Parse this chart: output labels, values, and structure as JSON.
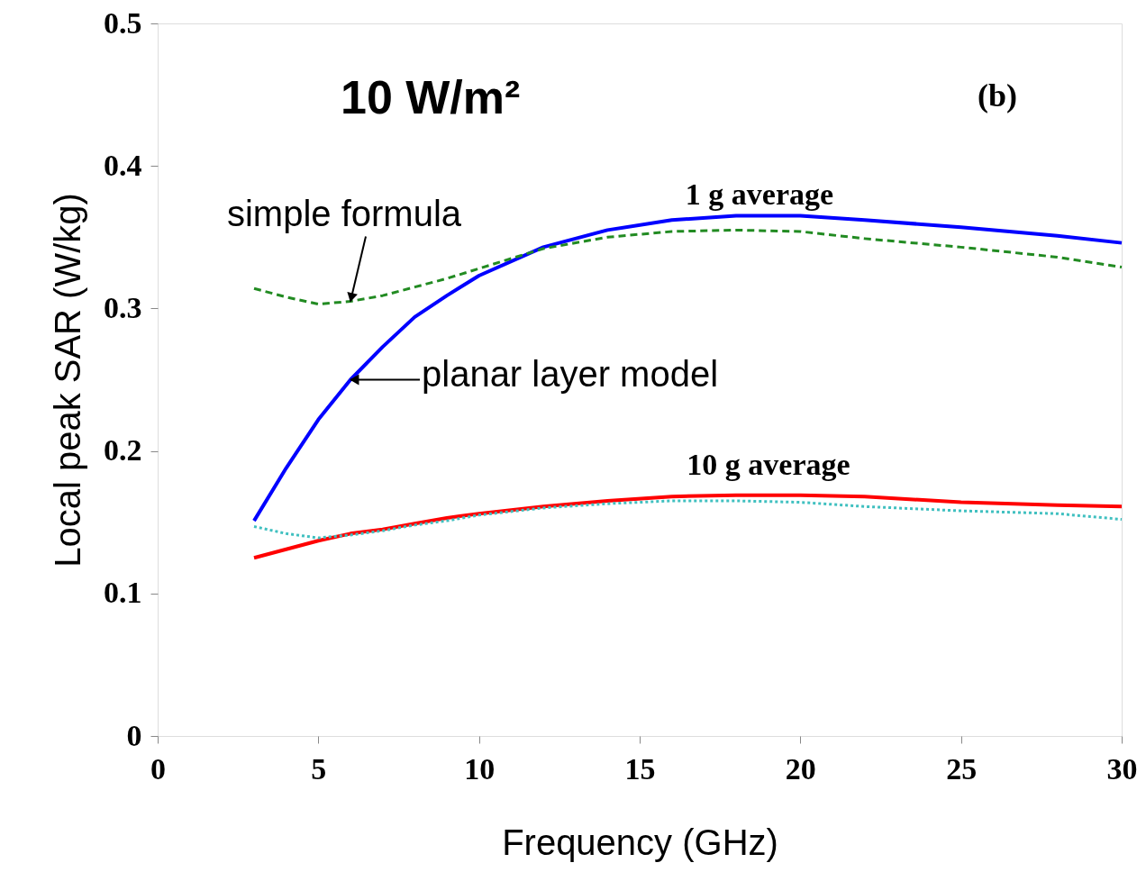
{
  "chart_data": {
    "type": "line",
    "xlabel": "Frequency (GHz)",
    "ylabel": "Local peak SAR (W/kg)",
    "x": [
      3,
      4,
      5,
      6,
      7,
      8,
      9,
      10,
      12,
      14,
      16,
      18,
      20,
      22,
      25,
      28,
      30
    ],
    "series": [
      {
        "color": "#0000ff",
        "line_style": "solid",
        "values": [
          0.151,
          0.188,
          0.222,
          0.25,
          0.273,
          0.294,
          0.309,
          0.323,
          0.343,
          0.355,
          0.362,
          0.365,
          0.365,
          0.362,
          0.357,
          0.351,
          0.346
        ]
      },
      {
        "color": "#228b22",
        "line_style": "dashed",
        "values": [
          0.314,
          0.308,
          0.303,
          0.305,
          0.309,
          0.315,
          0.321,
          0.328,
          0.342,
          0.35,
          0.354,
          0.355,
          0.354,
          0.349,
          0.343,
          0.336,
          0.329
        ]
      },
      {
        "color": "#ff0000",
        "line_style": "solid",
        "values": [
          0.125,
          0.131,
          0.137,
          0.142,
          0.145,
          0.149,
          0.153,
          0.156,
          0.161,
          0.165,
          0.168,
          0.169,
          0.169,
          0.168,
          0.164,
          0.162,
          0.161
        ]
      },
      {
        "color": "#40c0c0",
        "line_style": "dotted",
        "values": [
          0.147,
          0.142,
          0.139,
          0.141,
          0.144,
          0.148,
          0.151,
          0.155,
          0.16,
          0.163,
          0.165,
          0.165,
          0.164,
          0.161,
          0.158,
          0.156,
          0.152
        ]
      }
    ],
    "xlim": [
      0,
      30
    ],
    "xticks": [
      0,
      5,
      10,
      15,
      20,
      25,
      30
    ],
    "ylim": [
      0,
      0.5
    ],
    "yticks": [
      0,
      0.1,
      0.2,
      0.3,
      0.4,
      0.5
    ],
    "grid": false,
    "annotations": [
      "10 W/m²",
      "(b)",
      {
        "text": "simple formula",
        "x": 6,
        "y": 0.305
      },
      {
        "text": "planar layer model",
        "x": 6,
        "y": 0.25
      },
      "1 g average",
      "10 g average"
    ]
  }
}
